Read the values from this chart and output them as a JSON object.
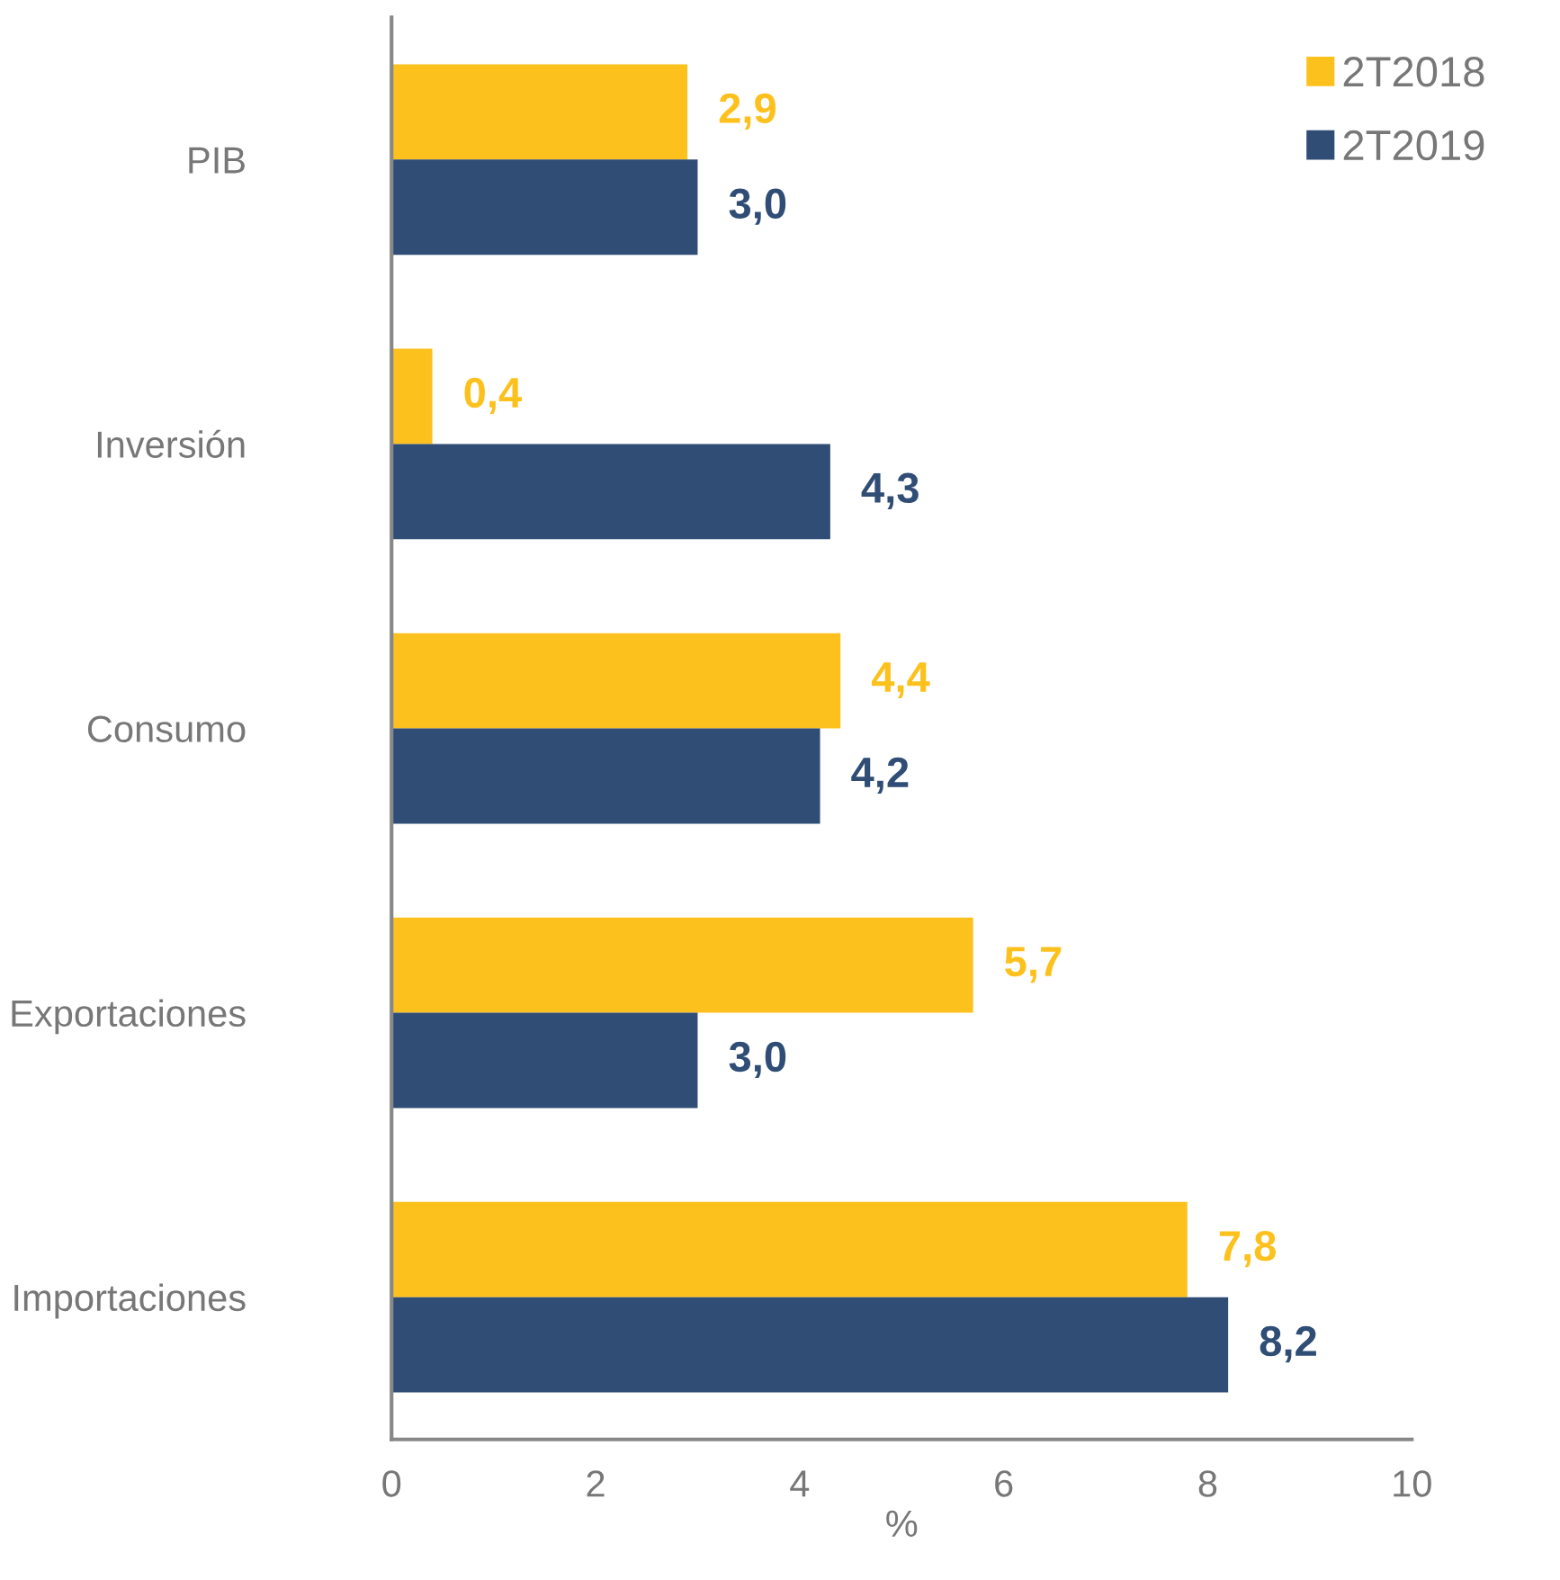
{
  "chart_data": {
    "type": "bar",
    "orientation": "horizontal",
    "categories": [
      "PIB",
      "Inversión",
      "Consumo",
      "Exportaciones",
      "Importaciones"
    ],
    "series": [
      {
        "name": "2T2018",
        "color": "#fdc11d",
        "values": [
          2.9,
          0.4,
          4.4,
          5.7,
          7.8
        ],
        "value_labels": [
          "2,9",
          "0,4",
          "4,4",
          "5,7",
          "7,8"
        ]
      },
      {
        "name": "2T2019",
        "color": "#2f4d75",
        "values": [
          3.0,
          4.3,
          4.2,
          3.0,
          8.2
        ],
        "value_labels": [
          "3,0",
          "4,3",
          "4,2",
          "3,0",
          "8,2"
        ]
      }
    ],
    "xlabel": "%",
    "xlim": [
      0,
      10
    ],
    "xticks": [
      0,
      2,
      4,
      6,
      8,
      10
    ],
    "grid": false,
    "legend": "top right"
  }
}
